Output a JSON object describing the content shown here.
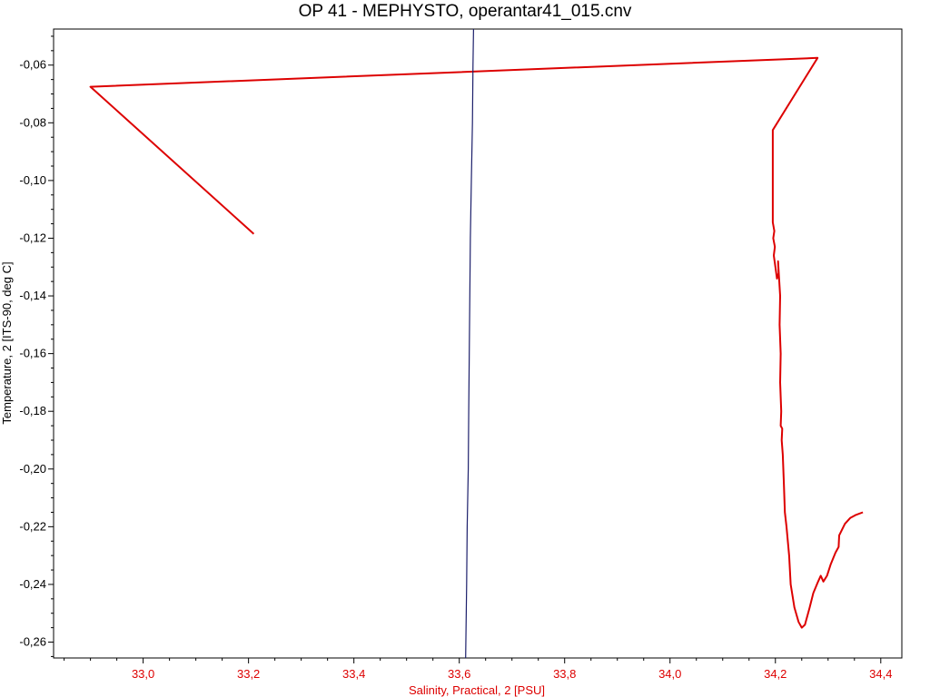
{
  "chart_data": {
    "type": "line",
    "title": "OP 41 - MEPHYSTO, operantar41_015.cnv",
    "xlabel": "Salinity, Practical, 2 [PSU]",
    "ylabel": "Temperature, 2 [ITS-90, deg C]",
    "xlim": [
      32.83,
      34.44
    ],
    "ylim": [
      -0.2655,
      -0.0475
    ],
    "grid": false,
    "x_ticks": [
      {
        "value": 33.0,
        "label": "33,0"
      },
      {
        "value": 33.2,
        "label": "33,2"
      },
      {
        "value": 33.4,
        "label": "33,4"
      },
      {
        "value": 33.6,
        "label": "33,6"
      },
      {
        "value": 33.8,
        "label": "33,8"
      },
      {
        "value": 34.0,
        "label": "34,0"
      },
      {
        "value": 34.2,
        "label": "34,2"
      },
      {
        "value": 34.4,
        "label": "34,4"
      }
    ],
    "y_ticks": [
      {
        "value": -0.06,
        "label": "-0,06"
      },
      {
        "value": -0.08,
        "label": "-0,08"
      },
      {
        "value": -0.1,
        "label": "-0,10"
      },
      {
        "value": -0.12,
        "label": "-0,12"
      },
      {
        "value": -0.14,
        "label": "-0,14"
      },
      {
        "value": -0.16,
        "label": "-0,16"
      },
      {
        "value": -0.18,
        "label": "-0,18"
      },
      {
        "value": -0.2,
        "label": "-0,20"
      },
      {
        "value": -0.22,
        "label": "-0,22"
      },
      {
        "value": -0.24,
        "label": "-0,24"
      },
      {
        "value": -0.26,
        "label": "-0,26"
      }
    ],
    "series": [
      {
        "color": "#dd0000",
        "points": [
          [
            33.21,
            -0.1185
          ],
          [
            32.9,
            -0.0675
          ],
          [
            34.28,
            -0.0575
          ],
          [
            34.195,
            -0.0825
          ],
          [
            34.195,
            -0.1145
          ],
          [
            34.198,
            -0.1175
          ],
          [
            34.196,
            -0.12
          ],
          [
            34.199,
            -0.123
          ],
          [
            34.197,
            -0.126
          ],
          [
            34.2,
            -0.13
          ],
          [
            34.203,
            -0.134
          ],
          [
            34.206,
            -0.132
          ],
          [
            34.205,
            -0.128
          ],
          [
            34.209,
            -0.14
          ],
          [
            34.208,
            -0.15
          ],
          [
            34.21,
            -0.16
          ],
          [
            34.209,
            -0.17
          ],
          [
            34.211,
            -0.18
          ],
          [
            34.21,
            -0.185
          ],
          [
            34.213,
            -0.186
          ],
          [
            34.212,
            -0.19
          ],
          [
            34.214,
            -0.195
          ],
          [
            34.216,
            -0.205
          ],
          [
            34.218,
            -0.215
          ],
          [
            34.221,
            -0.22
          ],
          [
            34.226,
            -0.23
          ],
          [
            34.229,
            -0.24
          ],
          [
            34.236,
            -0.248
          ],
          [
            34.244,
            -0.253
          ],
          [
            34.25,
            -0.255
          ],
          [
            34.256,
            -0.254
          ],
          [
            34.265,
            -0.248
          ],
          [
            34.272,
            -0.243
          ],
          [
            34.281,
            -0.239
          ],
          [
            34.286,
            -0.237
          ],
          [
            34.291,
            -0.239
          ],
          [
            34.298,
            -0.237
          ],
          [
            34.305,
            -0.233
          ],
          [
            34.314,
            -0.229
          ],
          [
            34.32,
            -0.227
          ],
          [
            34.321,
            -0.223
          ],
          [
            34.332,
            -0.219
          ],
          [
            34.342,
            -0.217
          ],
          [
            34.352,
            -0.216
          ],
          [
            34.366,
            -0.215
          ]
        ]
      },
      {
        "color": "#1c1f6b",
        "points": [
          [
            33.612,
            -0.2655
          ],
          [
            33.614,
            -0.24
          ],
          [
            33.615,
            -0.22
          ],
          [
            33.617,
            -0.2
          ],
          [
            33.618,
            -0.18
          ],
          [
            33.619,
            -0.16
          ],
          [
            33.62,
            -0.14
          ],
          [
            33.621,
            -0.12
          ],
          [
            33.623,
            -0.1
          ],
          [
            33.625,
            -0.08
          ],
          [
            33.626,
            -0.06
          ],
          [
            33.627,
            -0.0475
          ]
        ]
      }
    ]
  }
}
